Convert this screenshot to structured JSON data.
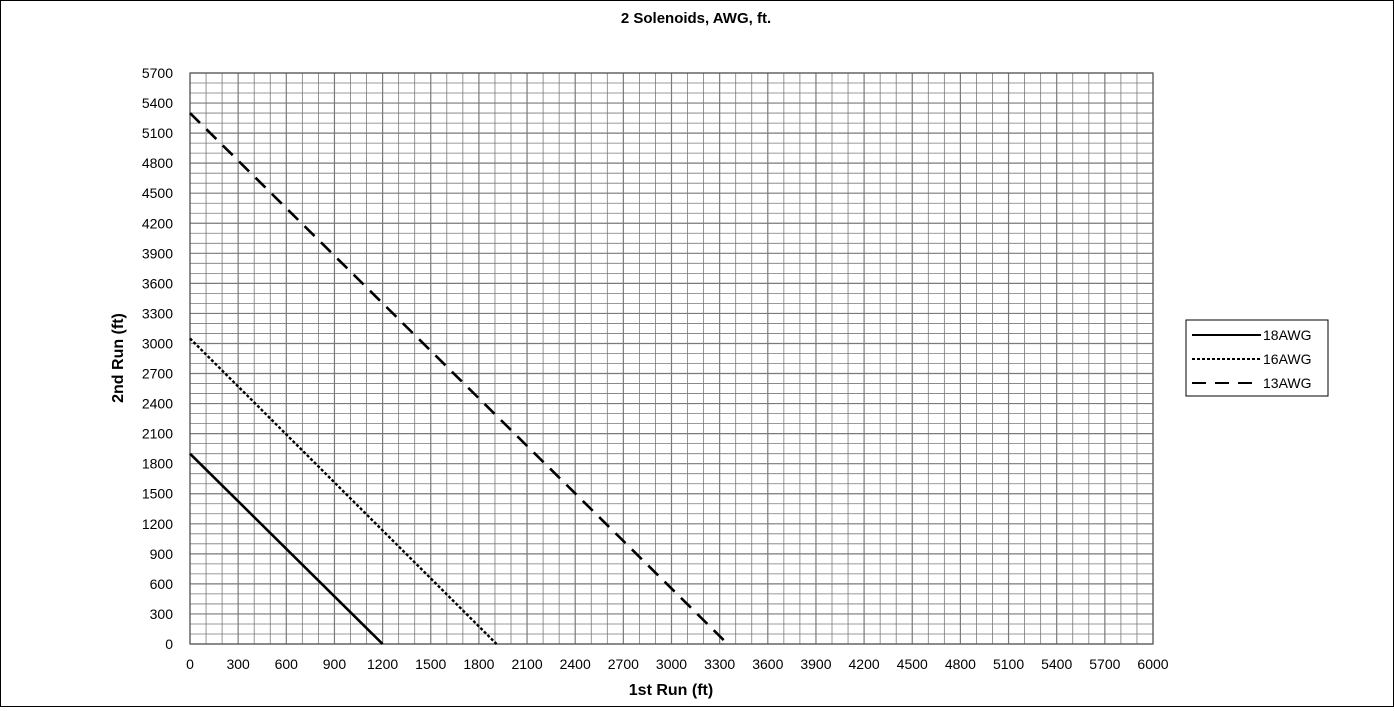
{
  "chart_data": {
    "type": "line",
    "title": "2 Solenoids, AWG, ft.",
    "xlabel": "1st Run (ft)",
    "ylabel": "2nd Run (ft)",
    "xlim": [
      0,
      6000
    ],
    "ylim": [
      0,
      5700
    ],
    "x_major_step": 300,
    "y_major_step": 300,
    "minor_divisions": 3,
    "grid": true,
    "legend": "right",
    "series": [
      {
        "name": "18AWG",
        "style": "solid",
        "x": [
          0,
          1200
        ],
        "y": [
          1900,
          0
        ]
      },
      {
        "name": "16AWG",
        "style": "dotted",
        "x": [
          0,
          1910
        ],
        "y": [
          3050,
          0
        ]
      },
      {
        "name": "13AWG",
        "style": "dashed",
        "x": [
          0,
          3350
        ],
        "y": [
          5300,
          0
        ]
      }
    ]
  },
  "colors": {
    "grid": "#7a7a7a",
    "line": "#000000",
    "background": "#ffffff"
  }
}
